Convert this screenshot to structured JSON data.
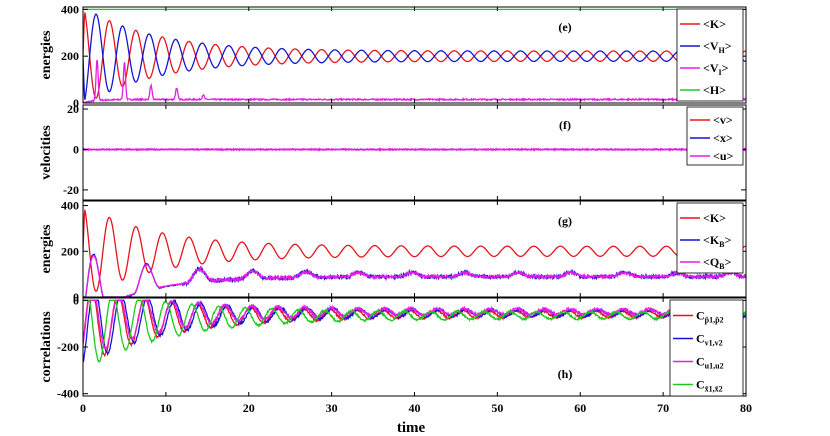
{
  "figure": {
    "xlabel": "time"
  },
  "chart_data": [
    {
      "type": "line",
      "panel": "(e)",
      "ylabel": "energies",
      "xlim": [
        0,
        80
      ],
      "ylim": [
        0,
        410
      ],
      "xticks": [
        0,
        10,
        20,
        30,
        40,
        50,
        60,
        70,
        80
      ],
      "yticks": [
        0,
        200,
        400
      ],
      "legend_position": "top-right",
      "series": [
        {
          "name": "<K>",
          "color": "#e8141c",
          "curve": {
            "kind": "osc",
            "mean": 200,
            "amp": 190,
            "decay": 0.12,
            "floor": 22,
            "period": 3.2,
            "phase": 0.0
          }
        },
        {
          "name": "<V_H>",
          "color": "#1414d6",
          "curve": {
            "kind": "osc",
            "mean": 200,
            "amp": 190,
            "decay": 0.12,
            "floor": 22,
            "period": 3.2,
            "phase": 3.14159
          }
        },
        {
          "name": "<V_I>",
          "color": "#e81ce8",
          "curve": {
            "kind": "spikes",
            "base": 15,
            "spikes": [
              [
                1.7,
                175
              ],
              [
                5.0,
                160
              ],
              [
                8.2,
                60
              ],
              [
                11.3,
                50
              ],
              [
                14.5,
                20
              ]
            ],
            "noise": 3
          }
        },
        {
          "name": "<H>",
          "color": "#1fc91f",
          "curve": {
            "kind": "const",
            "value": 400
          }
        }
      ]
    },
    {
      "type": "line",
      "panel": "(f)",
      "ylabel": "velocities",
      "xlim": [
        0,
        80
      ],
      "ylim": [
        -25,
        22
      ],
      "xticks": [
        0,
        10,
        20,
        30,
        40,
        50,
        60,
        70,
        80
      ],
      "yticks": [
        -20,
        0,
        20
      ],
      "legend_position": "top-right",
      "series": [
        {
          "name": "<v>",
          "color": "#e8141c",
          "curve": {
            "kind": "const",
            "value": 0
          }
        },
        {
          "name": "<x>",
          "color": "#1414d6",
          "curve": {
            "kind": "const",
            "value": 0
          }
        },
        {
          "name": "<u>",
          "color": "#e81ce8",
          "curve": {
            "kind": "noise",
            "value": 0,
            "noise": 0.35
          }
        }
      ]
    },
    {
      "type": "line",
      "panel": "(g)",
      "ylabel": "energies",
      "xlim": [
        0,
        80
      ],
      "ylim": [
        0,
        420
      ],
      "xticks": [
        0,
        10,
        20,
        30,
        40,
        50,
        60,
        70,
        80
      ],
      "yticks": [
        0,
        200,
        400
      ],
      "legend_position": "top-right",
      "series": [
        {
          "name": "<K>",
          "color": "#e8141c",
          "curve": {
            "kind": "osc",
            "mean": 200,
            "amp": 185,
            "decay": 0.12,
            "floor": 22,
            "period": 3.2,
            "phase": 0.0
          }
        },
        {
          "name": "<K_B>",
          "color": "#1414d6",
          "curve": {
            "kind": "pulse",
            "mean": 95,
            "amp": 290,
            "decay": 0.14,
            "floor": 18,
            "period": 3.2,
            "phase": 0.0,
            "noise": 8
          }
        },
        {
          "name": "<Q_B>",
          "color": "#e81ce8",
          "curve": {
            "kind": "pulse",
            "mean": 95,
            "amp": 280,
            "decay": 0.14,
            "floor": 16,
            "period": 3.2,
            "phase": 0.0,
            "noise": 6
          }
        }
      ]
    },
    {
      "type": "line",
      "panel": "(h)",
      "ylabel": "correlations",
      "xlim": [
        0,
        80
      ],
      "ylim": [
        -410,
        10
      ],
      "xticks": [
        0,
        10,
        20,
        30,
        40,
        50,
        60,
        70,
        80
      ],
      "yticks": [
        -400,
        -200,
        0
      ],
      "legend_position": "right",
      "series": [
        {
          "name": "C_p1,p2",
          "label_main": "C",
          "label_sub": "p̂1,p̂2",
          "color": "#e8141c",
          "curve": {
            "kind": "negosc",
            "mean": -55,
            "amp": 320,
            "decay": 0.1,
            "floor": 28,
            "period": 3.2,
            "phase": 1.1,
            "noise": 4
          }
        },
        {
          "name": "C_v1,v2",
          "label_main": "C",
          "label_sub": "v1,v2",
          "color": "#1414d6",
          "curve": {
            "kind": "negosc",
            "mean": -50,
            "amp": 330,
            "decay": 0.1,
            "floor": 25,
            "period": 3.2,
            "phase": 0.4,
            "noise": 5
          }
        },
        {
          "name": "C_u1,u2",
          "label_main": "C",
          "label_sub": "u1,u2",
          "color": "#e81ce8",
          "curve": {
            "kind": "negosc",
            "mean": -45,
            "amp": 300,
            "decay": 0.1,
            "floor": 22,
            "period": 3.2,
            "phase": 0.9,
            "noise": 6
          }
        },
        {
          "name": "C_x1,x2",
          "label_main": "C",
          "label_sub": "x̂1,x̂2",
          "color": "#1fc91f",
          "curve": {
            "kind": "negosc",
            "mean": -60,
            "amp": 340,
            "decay": 0.1,
            "floor": 30,
            "period": 3.2,
            "phase": 2.4,
            "noise": 4
          }
        }
      ]
    }
  ]
}
